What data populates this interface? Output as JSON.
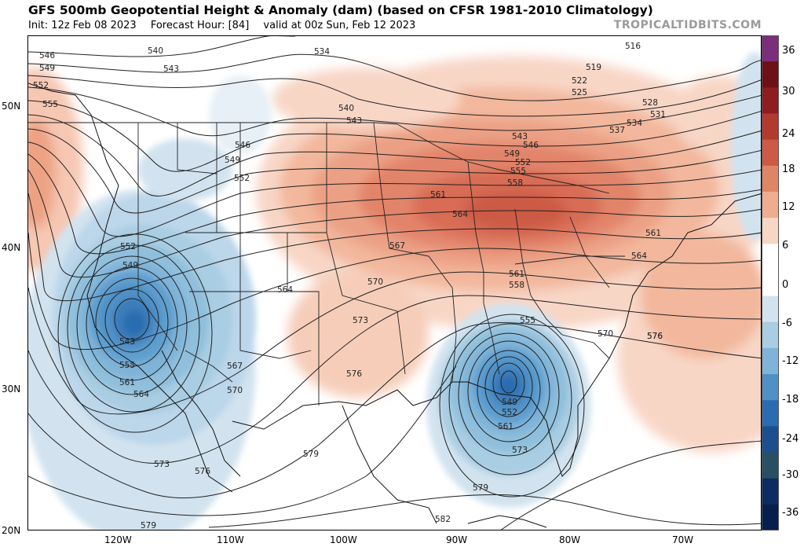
{
  "header": {
    "title": "GFS 500mb Geopotential Height & Anomaly (dam) (based on CFSR 1981-2010 Climatology)",
    "init": "Init: 12z Feb 08 2023",
    "forecast_hour": "Forecast Hour: [84]",
    "valid": "valid at 00z Sun, Feb 12 2023",
    "brand": "TROPICALTIDBITS.COM"
  },
  "axes": {
    "lat_labels": [
      "50N",
      "40N",
      "30N",
      "20N"
    ],
    "lon_labels": [
      "120W",
      "110W",
      "100W",
      "90W",
      "80W",
      "70W"
    ]
  },
  "colorbar": {
    "labels": [
      "36",
      "30",
      "24",
      "18",
      "12",
      "6",
      "0",
      "-6",
      "-12",
      "-18",
      "-24",
      "-30",
      "-36"
    ],
    "colors": [
      "#7b2f7b",
      "#6e1018",
      "#8e1d1f",
      "#b33a2f",
      "#cc5a44",
      "#e08466",
      "#efac8f",
      "#f8d6c6",
      "#ffffff",
      "#ffffff",
      "#d2e3ef",
      "#a9cde2",
      "#7fb3d8",
      "#4f90c6",
      "#2b6cb0",
      "#1d4f8f",
      "#294f64",
      "#0c2c62",
      "#081f4e"
    ]
  },
  "contour_labels": [
    {
      "text": "546"
    },
    {
      "text": "549"
    },
    {
      "text": "552"
    },
    {
      "text": "555"
    },
    {
      "text": "540"
    },
    {
      "text": "543"
    },
    {
      "text": "534"
    },
    {
      "text": "516"
    },
    {
      "text": "519"
    },
    {
      "text": "522"
    },
    {
      "text": "525"
    },
    {
      "text": "528"
    },
    {
      "text": "531"
    },
    {
      "text": "534"
    },
    {
      "text": "537"
    },
    {
      "text": "540"
    },
    {
      "text": "543"
    },
    {
      "text": "546"
    },
    {
      "text": "549"
    },
    {
      "text": "552"
    },
    {
      "text": "543"
    },
    {
      "text": "546"
    },
    {
      "text": "549"
    },
    {
      "text": "552"
    },
    {
      "text": "555"
    },
    {
      "text": "558"
    },
    {
      "text": "561"
    },
    {
      "text": "564"
    },
    {
      "text": "567"
    },
    {
      "text": "570"
    },
    {
      "text": "573"
    },
    {
      "text": "576"
    },
    {
      "text": "564"
    },
    {
      "text": "561"
    },
    {
      "text": "558"
    },
    {
      "text": "555"
    },
    {
      "text": "549"
    },
    {
      "text": "552"
    },
    {
      "text": "561"
    },
    {
      "text": "573"
    },
    {
      "text": "579"
    },
    {
      "text": "570"
    },
    {
      "text": "576"
    },
    {
      "text": "561"
    },
    {
      "text": "564"
    },
    {
      "text": "552"
    },
    {
      "text": "549"
    },
    {
      "text": "543"
    },
    {
      "text": "555"
    },
    {
      "text": "561"
    },
    {
      "text": "564"
    },
    {
      "text": "567"
    },
    {
      "text": "570"
    },
    {
      "text": "573"
    },
    {
      "text": "576"
    },
    {
      "text": "579"
    },
    {
      "text": "579"
    },
    {
      "text": "582"
    },
    {
      "text": "576"
    }
  ]
}
